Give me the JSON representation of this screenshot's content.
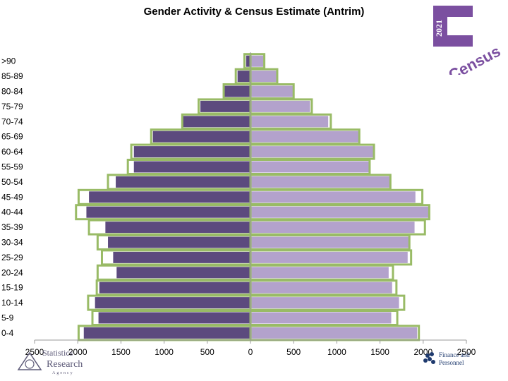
{
  "chart_data": {
    "type": "bar",
    "title": "Gender Activity & Census Estimate (Antrim)",
    "categories": [
      ">90",
      "85-89",
      "80-84",
      "75-79",
      "70-74",
      "65-69",
      "60-64",
      "55-59",
      "50-54",
      "45-49",
      "40-44",
      "35-39",
      "30-34",
      "25-29",
      "20-24",
      "15-19",
      "10-14",
      "5-9",
      "0-4"
    ],
    "series": [
      {
        "side": "left",
        "fill": "#5c4a7e",
        "kind": "activity",
        "values": [
          50,
          150,
          320,
          580,
          800,
          1130,
          1350,
          1350,
          1560,
          1870,
          1900,
          1680,
          1650,
          1590,
          1550,
          1750,
          1800,
          1760,
          1930
        ]
      },
      {
        "side": "left",
        "outline": "#99bb66",
        "kind": "estimate",
        "values": [
          70,
          170,
          310,
          600,
          790,
          1150,
          1380,
          1420,
          1650,
          1990,
          2020,
          1870,
          1770,
          1720,
          1770,
          1780,
          1880,
          1830,
          1990
        ]
      },
      {
        "side": "right",
        "fill": "#b3a2cc",
        "kind": "activity",
        "values": [
          150,
          310,
          490,
          690,
          900,
          1270,
          1420,
          1380,
          1620,
          1910,
          2060,
          1900,
          1840,
          1820,
          1600,
          1640,
          1720,
          1630,
          1930
        ]
      },
      {
        "side": "right",
        "outline": "#99bb66",
        "kind": "estimate",
        "values": [
          160,
          310,
          500,
          710,
          930,
          1260,
          1430,
          1380,
          1620,
          1990,
          2070,
          2020,
          1840,
          1860,
          1650,
          1690,
          1780,
          1700,
          1950
        ]
      }
    ],
    "xticks": [
      "2500",
      "2000",
      "1500",
      "1000",
      "500",
      "0",
      "500",
      "1000",
      "1500",
      "2000",
      "2500"
    ],
    "xlim": [
      -2500,
      2500
    ],
    "xlabel": "",
    "ylabel": "",
    "grid": false,
    "legend": "none"
  },
  "logos": {
    "census_year": "2021",
    "census_word": "Census",
    "nisra_line1": "Statistics",
    "nisra_line2": "Research",
    "nisra_line3": "Agency",
    "dfp_line1": "Finance and",
    "dfp_line2": "Personnel"
  },
  "colors": {
    "activity_left": "#5c4a7e",
    "activity_right": "#b3a2cc",
    "estimate_outline": "#99bb66",
    "census_purple": "#7b4fa0"
  }
}
